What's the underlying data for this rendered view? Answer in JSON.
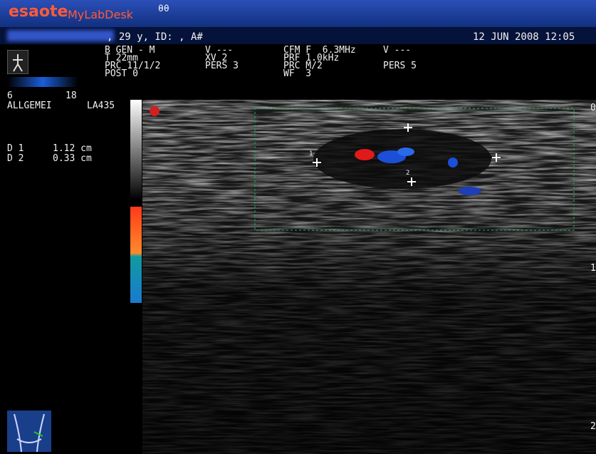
{
  "header": {
    "brand": "esaote",
    "product": "MyLabDesk",
    "icon_text": "θθ"
  },
  "patient": {
    "info": ", 29 y, ID: , A#",
    "datetime": "12 JUN 2008 12:05"
  },
  "b_mode": {
    "lines": [
      "B GEN - M",
      "T 22mm",
      "PRC 11/1/2",
      "POST 0"
    ]
  },
  "b_mode_extra": {
    "lines": [
      "V ---",
      "XV 2",
      "PERS 3"
    ]
  },
  "cfm": {
    "lines": [
      "CFM F  6.3MHz",
      "PRF 1.0kHz",
      "PRC M/2",
      "WF  3"
    ]
  },
  "cfm_extra": {
    "lines": [
      "V ---",
      "",
      "PERS 5"
    ]
  },
  "scale": {
    "min": "6",
    "max": "18"
  },
  "probe": {
    "preset": "ALLGEMEI",
    "name": "LA435"
  },
  "measurements": [
    {
      "label": "D 1",
      "value": "1.12 cm"
    },
    {
      "label": "D 2",
      "value": "0.33 cm"
    }
  ],
  "markers": [
    "1",
    "2"
  ],
  "depth_marks": [
    "0",
    "1",
    "2"
  ]
}
